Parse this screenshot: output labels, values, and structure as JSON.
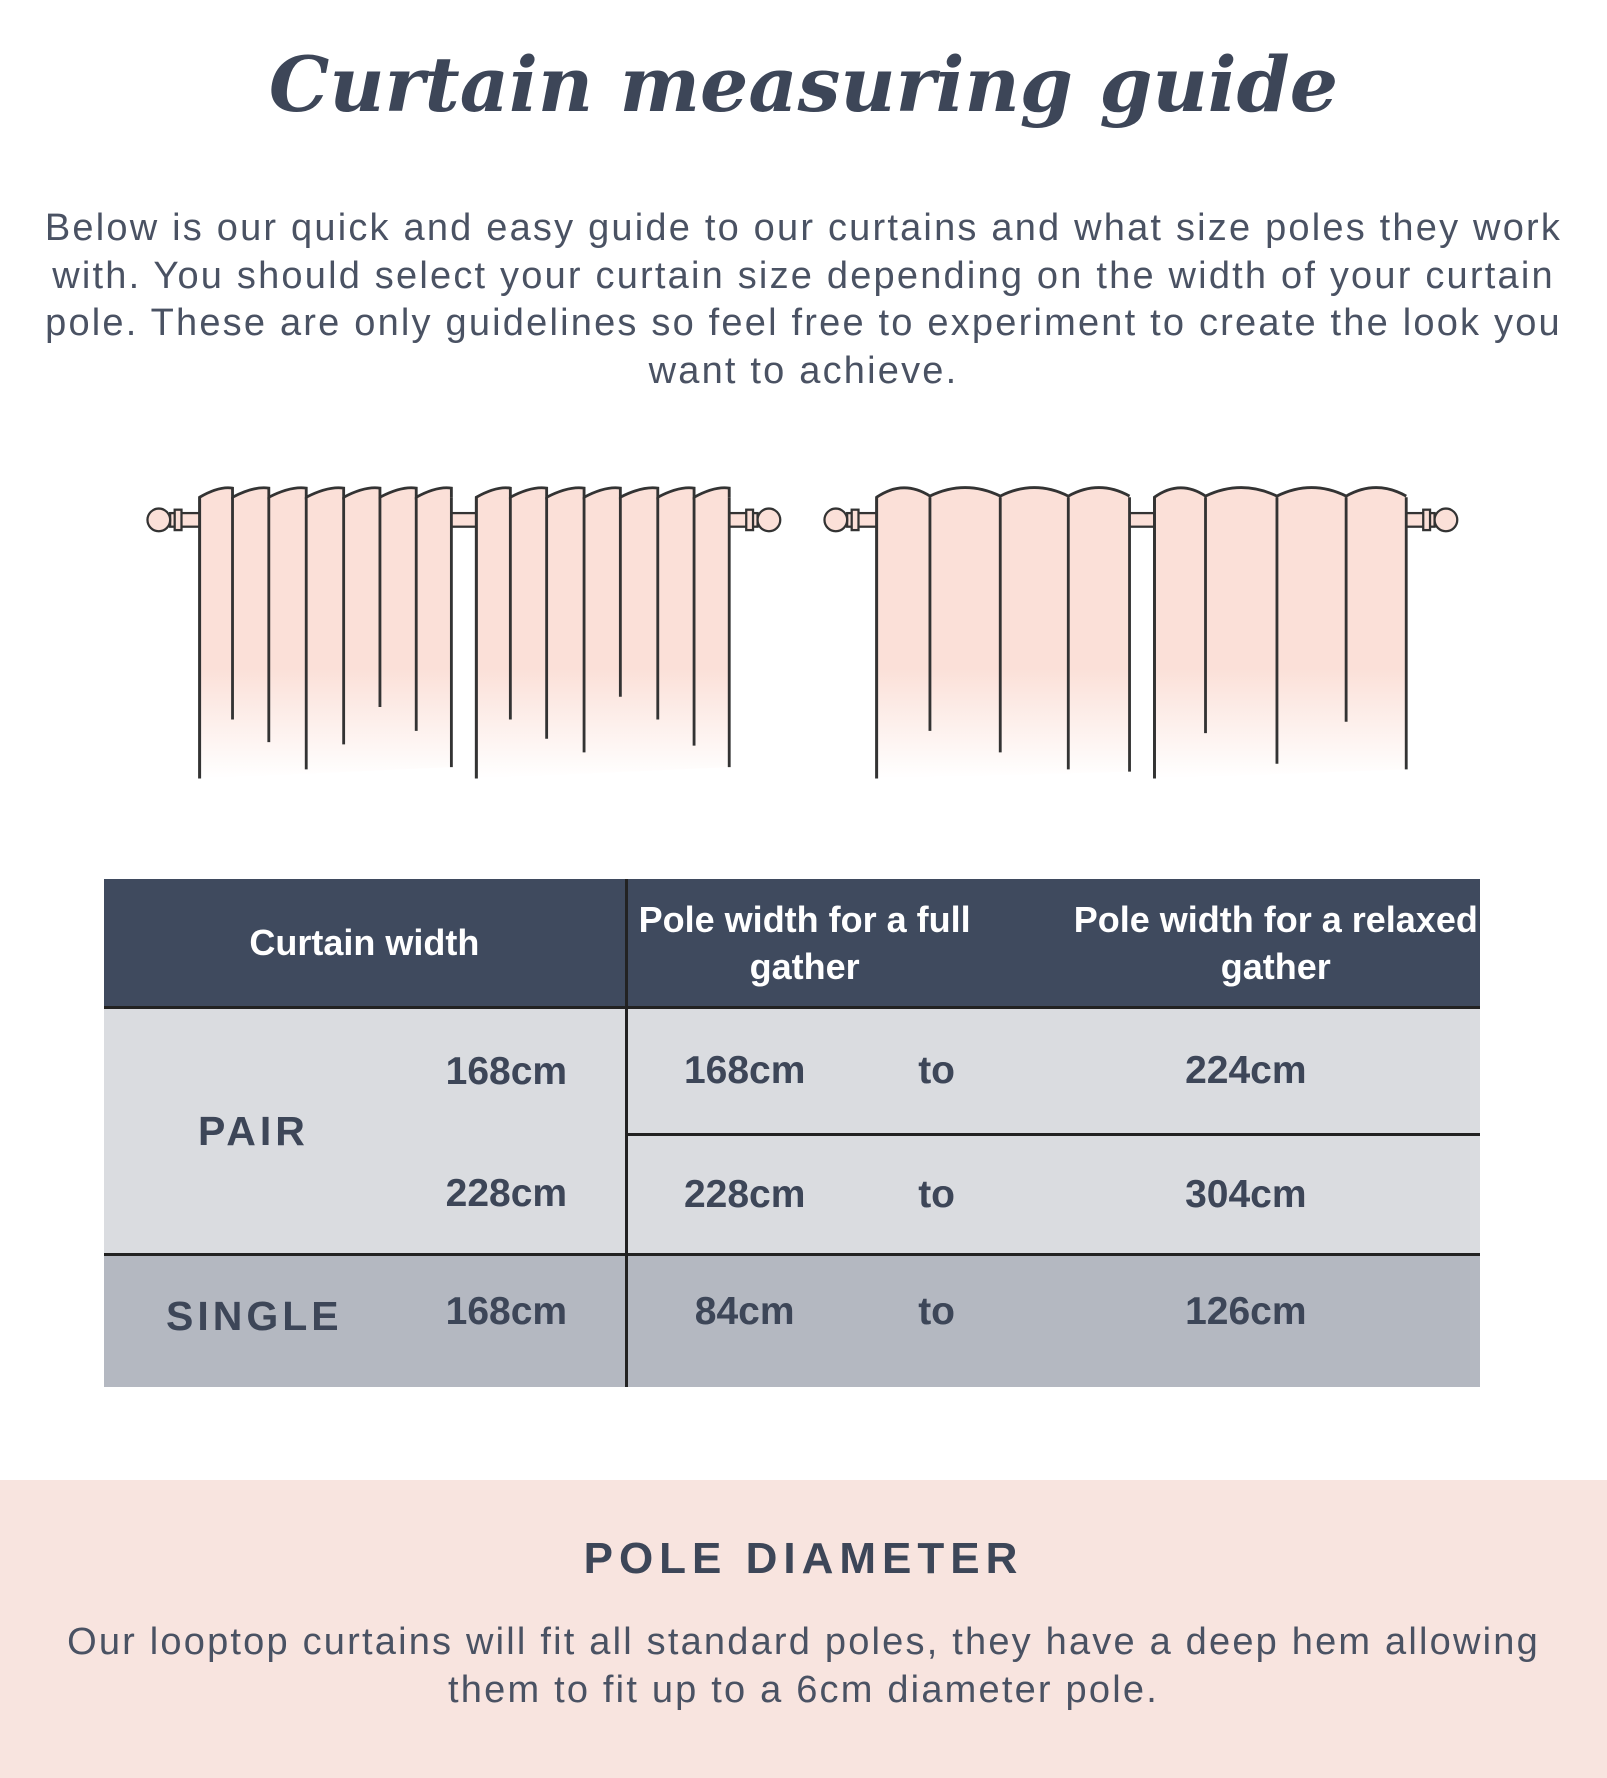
{
  "header": {
    "title": "Curtain measuring guide",
    "intro": "Below is our quick and easy guide to our curtains and what size poles they work with. You should select your curtain size depending on the width of your curtain pole. These are only guidelines so feel free to experiment to create the look you want to achieve."
  },
  "illustrations": {
    "curtain_fill": "#fbe0d8",
    "line_color": "#333333",
    "left": "full gather curtain",
    "right": "relaxed gather curtain"
  },
  "table": {
    "headers": [
      "Curtain width",
      "Pole width for a full gather",
      "Pole width for a relaxed gather"
    ],
    "rows": [
      {
        "type": "PAIR",
        "width": "168cm",
        "full": "168cm",
        "sep": "to",
        "relaxed": "224cm"
      },
      {
        "type": "PAIR",
        "width": "228cm",
        "full": "228cm",
        "sep": "to",
        "relaxed": "304cm"
      },
      {
        "type": "SINGLE",
        "width": "168cm",
        "full": "84cm",
        "sep": "to",
        "relaxed": "126cm"
      }
    ],
    "colors": {
      "header": "#3f4a5e",
      "pair": "#dadce0",
      "single": "#b4b8c1"
    }
  },
  "pole": {
    "title": "POLE DIAMETER",
    "text": "Our looptop curtains will fit all standard poles, they have a deep hem allowing them to fit up to a 6cm diameter pole.",
    "background": "#f8e4df"
  }
}
